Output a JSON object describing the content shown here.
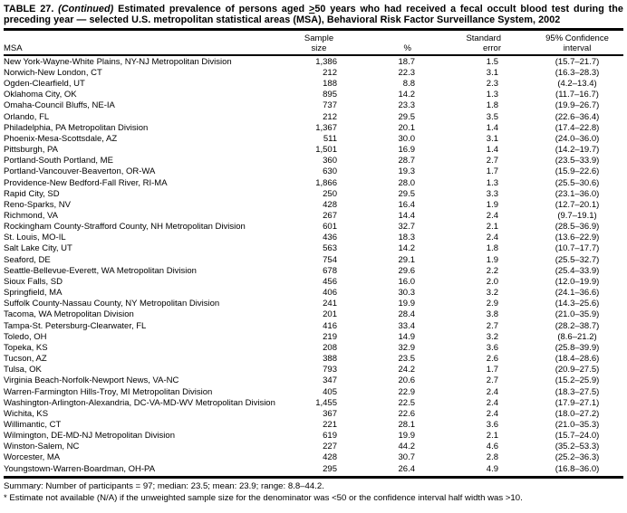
{
  "table": {
    "title": {
      "label": "TABLE 27.",
      "continued": "(Continued)",
      "before_ge": "Estimated prevalence of persons aged",
      "ge": ">",
      "after_ge": "50 years who had received a fecal occult blood test during the preceding year — selected U.S. metropolitan statistical areas (MSA), Behavioral Risk Factor Surveillance System, 2002"
    },
    "columns": {
      "msa": "MSA",
      "sample_size_line1": "Sample",
      "sample_size_line2": "size",
      "percent": "%",
      "standard_error_line1": "Standard",
      "standard_error_line2": "error",
      "ci_line1": "95% Confidence",
      "ci_line2": "interval"
    },
    "rows": [
      {
        "msa": "New York-Wayne-White Plains, NY-NJ Metropolitan Division",
        "sample_size": "1,386",
        "percent": "18.7",
        "standard_error": "1.5",
        "ci": "(15.7–21.7)"
      },
      {
        "msa": "Norwich-New London, CT",
        "sample_size": "212",
        "percent": "22.3",
        "standard_error": "3.1",
        "ci": "(16.3–28.3)"
      },
      {
        "msa": "Ogden-Clearfield, UT",
        "sample_size": "188",
        "percent": "8.8",
        "standard_error": "2.3",
        "ci": "(4.2–13.4)"
      },
      {
        "msa": "Oklahoma City, OK",
        "sample_size": "895",
        "percent": "14.2",
        "standard_error": "1.3",
        "ci": "(11.7–16.7)"
      },
      {
        "msa": "Omaha-Council Bluffs, NE-IA",
        "sample_size": "737",
        "percent": "23.3",
        "standard_error": "1.8",
        "ci": "(19.9–26.7)"
      },
      {
        "msa": "Orlando, FL",
        "sample_size": "212",
        "percent": "29.5",
        "standard_error": "3.5",
        "ci": "(22.6–36.4)"
      },
      {
        "msa": "Philadelphia, PA Metropolitan Division",
        "sample_size": "1,367",
        "percent": "20.1",
        "standard_error": "1.4",
        "ci": "(17.4–22.8)"
      },
      {
        "msa": "Phoenix-Mesa-Scottsdale, AZ",
        "sample_size": "511",
        "percent": "30.0",
        "standard_error": "3.1",
        "ci": "(24.0–36.0)"
      },
      {
        "msa": "Pittsburgh, PA",
        "sample_size": "1,501",
        "percent": "16.9",
        "standard_error": "1.4",
        "ci": "(14.2–19.7)"
      },
      {
        "msa": "Portland-South Portland, ME",
        "sample_size": "360",
        "percent": "28.7",
        "standard_error": "2.7",
        "ci": "(23.5–33.9)"
      },
      {
        "msa": "Portland-Vancouver-Beaverton, OR-WA",
        "sample_size": "630",
        "percent": "19.3",
        "standard_error": "1.7",
        "ci": "(15.9–22.6)"
      },
      {
        "msa": "Providence-New Bedford-Fall River, RI-MA",
        "sample_size": "1,866",
        "percent": "28.0",
        "standard_error": "1.3",
        "ci": "(25.5–30.6)"
      },
      {
        "msa": "Rapid City, SD",
        "sample_size": "250",
        "percent": "29.5",
        "standard_error": "3.3",
        "ci": "(23.1–36.0)"
      },
      {
        "msa": "Reno-Sparks, NV",
        "sample_size": "428",
        "percent": "16.4",
        "standard_error": "1.9",
        "ci": "(12.7–20.1)"
      },
      {
        "msa": "Richmond, VA",
        "sample_size": "267",
        "percent": "14.4",
        "standard_error": "2.4",
        "ci": "(9.7–19.1)"
      },
      {
        "msa": "Rockingham County-Strafford County, NH Metropolitan Division",
        "sample_size": "601",
        "percent": "32.7",
        "standard_error": "2.1",
        "ci": "(28.5–36.9)"
      },
      {
        "msa": "St. Louis, MO-IL",
        "sample_size": "436",
        "percent": "18.3",
        "standard_error": "2.4",
        "ci": "(13.6–22.9)"
      },
      {
        "msa": "Salt Lake City, UT",
        "sample_size": "563",
        "percent": "14.2",
        "standard_error": "1.8",
        "ci": "(10.7–17.7)"
      },
      {
        "msa": "Seaford, DE",
        "sample_size": "754",
        "percent": "29.1",
        "standard_error": "1.9",
        "ci": "(25.5–32.7)"
      },
      {
        "msa": "Seattle-Bellevue-Everett, WA Metropolitan Division",
        "sample_size": "678",
        "percent": "29.6",
        "standard_error": "2.2",
        "ci": "(25.4–33.9)"
      },
      {
        "msa": "Sioux Falls, SD",
        "sample_size": "456",
        "percent": "16.0",
        "standard_error": "2.0",
        "ci": "(12.0–19.9)"
      },
      {
        "msa": "Springfield, MA",
        "sample_size": "406",
        "percent": "30.3",
        "standard_error": "3.2",
        "ci": "(24.1–36.6)"
      },
      {
        "msa": "Suffolk County-Nassau County, NY Metropolitan Division",
        "sample_size": "241",
        "percent": "19.9",
        "standard_error": "2.9",
        "ci": "(14.3–25.6)"
      },
      {
        "msa": "Tacoma, WA Metropolitan Division",
        "sample_size": "201",
        "percent": "28.4",
        "standard_error": "3.8",
        "ci": "(21.0–35.9)"
      },
      {
        "msa": "Tampa-St. Petersburg-Clearwater, FL",
        "sample_size": "416",
        "percent": "33.4",
        "standard_error": "2.7",
        "ci": "(28.2–38.7)"
      },
      {
        "msa": "Toledo, OH",
        "sample_size": "219",
        "percent": "14.9",
        "standard_error": "3.2",
        "ci": "(8.6–21.2)"
      },
      {
        "msa": "Topeka, KS",
        "sample_size": "208",
        "percent": "32.9",
        "standard_error": "3.6",
        "ci": "(25.8–39.9)"
      },
      {
        "msa": "Tucson, AZ",
        "sample_size": "388",
        "percent": "23.5",
        "standard_error": "2.6",
        "ci": "(18.4–28.6)"
      },
      {
        "msa": "Tulsa, OK",
        "sample_size": "793",
        "percent": "24.2",
        "standard_error": "1.7",
        "ci": "(20.9–27.5)"
      },
      {
        "msa": "Virginia Beach-Norfolk-Newport News, VA-NC",
        "sample_size": "347",
        "percent": "20.6",
        "standard_error": "2.7",
        "ci": "(15.2–25.9)"
      },
      {
        "msa": "Warren-Farmington Hills-Troy, MI Metropolitan Division",
        "sample_size": "405",
        "percent": "22.9",
        "standard_error": "2.4",
        "ci": "(18.3–27.5)"
      },
      {
        "msa": "Washington-Arlington-Alexandria, DC-VA-MD-WV Metropolitan Division",
        "sample_size": "1,455",
        "percent": "22.5",
        "standard_error": "2.4",
        "ci": "(17.9–27.1)"
      },
      {
        "msa": "Wichita, KS",
        "sample_size": "367",
        "percent": "22.6",
        "standard_error": "2.4",
        "ci": "(18.0–27.2)"
      },
      {
        "msa": "Willimantic, CT",
        "sample_size": "221",
        "percent": "28.1",
        "standard_error": "3.6",
        "ci": "(21.0–35.3)"
      },
      {
        "msa": "Wilmington, DE-MD-NJ Metropolitan Division",
        "sample_size": "619",
        "percent": "19.9",
        "standard_error": "2.1",
        "ci": "(15.7–24.0)"
      },
      {
        "msa": "Winston-Salem, NC",
        "sample_size": "227",
        "percent": "44.2",
        "standard_error": "4.6",
        "ci": "(35.2–53.3)"
      },
      {
        "msa": "Worcester, MA",
        "sample_size": "428",
        "percent": "30.7",
        "standard_error": "2.8",
        "ci": "(25.2–36.3)"
      },
      {
        "msa": "Youngstown-Warren-Boardman, OH-PA",
        "sample_size": "295",
        "percent": "26.4",
        "standard_error": "4.9",
        "ci": "(16.8–36.0)"
      }
    ],
    "summary": "Summary: Number of participants = 97; median: 23.5; mean: 23.9; range: 8.8–44.2.",
    "footnote": "* Estimate not available (N/A) if the unweighted sample size for the denominator was <50 or the confidence interval half width was >10."
  }
}
